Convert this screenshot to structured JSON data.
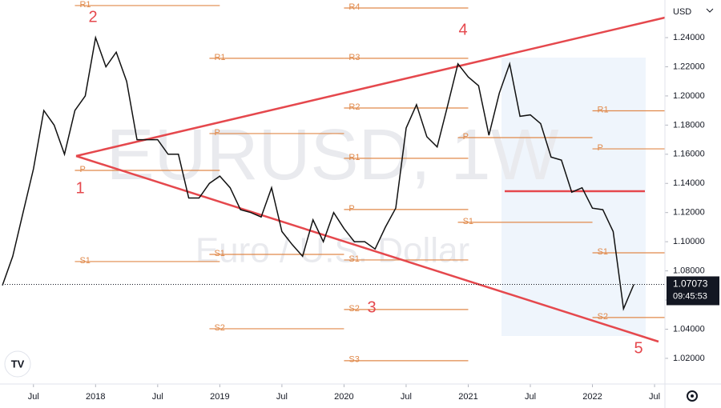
{
  "chart_data": {
    "type": "line",
    "watermark": "EURUSD, 1W",
    "watermark_subtitle": "Euro / U.S. Dollar",
    "currency": "USD",
    "color": "#111111",
    "x": [
      "2017-04",
      "2017-05",
      "2017-06",
      "2017-07",
      "2017-08",
      "2017-09",
      "2017-10",
      "2017-11",
      "2017-12",
      "2018-01",
      "2018-02",
      "2018-03",
      "2018-04",
      "2018-05",
      "2018-06",
      "2018-07",
      "2018-08",
      "2018-09",
      "2018-10",
      "2018-11",
      "2018-12",
      "2019-01",
      "2019-02",
      "2019-03",
      "2019-04",
      "2019-05",
      "2019-06",
      "2019-07",
      "2019-08",
      "2019-09",
      "2019-10",
      "2019-11",
      "2019-12",
      "2020-01",
      "2020-02",
      "2020-03",
      "2020-04",
      "2020-05",
      "2020-06",
      "2020-07",
      "2020-08",
      "2020-09",
      "2020-10",
      "2020-11",
      "2020-12",
      "2021-01",
      "2021-02",
      "2021-03",
      "2021-04",
      "2021-05",
      "2021-06",
      "2021-07",
      "2021-08",
      "2021-09",
      "2021-10",
      "2021-11",
      "2021-12",
      "2022-01",
      "2022-02",
      "2022-03",
      "2022-04",
      "2022-05"
    ],
    "values": [
      1.07,
      1.09,
      1.12,
      1.15,
      1.19,
      1.18,
      1.16,
      1.19,
      1.2,
      1.24,
      1.22,
      1.23,
      1.21,
      1.17,
      1.17,
      1.17,
      1.16,
      1.16,
      1.13,
      1.13,
      1.14,
      1.145,
      1.137,
      1.122,
      1.12,
      1.117,
      1.137,
      1.107,
      1.098,
      1.09,
      1.115,
      1.1,
      1.12,
      1.109,
      1.1,
      1.1,
      1.095,
      1.11,
      1.123,
      1.178,
      1.194,
      1.172,
      1.165,
      1.193,
      1.222,
      1.213,
      1.207,
      1.173,
      1.202,
      1.222,
      1.186,
      1.187,
      1.181,
      1.158,
      1.156,
      1.134,
      1.137,
      1.123,
      1.122,
      1.107,
      1.054,
      1.0707
    ],
    "xlim": [
      "2017-04",
      "2022-08"
    ],
    "xticks": [
      {
        "value": "2017-07",
        "label": "Jul"
      },
      {
        "value": "2018-01",
        "label": "2018"
      },
      {
        "value": "2018-07",
        "label": "Jul"
      },
      {
        "value": "2019-01",
        "label": "2019"
      },
      {
        "value": "2019-07",
        "label": "Jul"
      },
      {
        "value": "2020-01",
        "label": "2020"
      },
      {
        "value": "2020-07",
        "label": "Jul"
      },
      {
        "value": "2021-01",
        "label": "2021"
      },
      {
        "value": "2021-07",
        "label": "Jul"
      },
      {
        "value": "2022-01",
        "label": "2022"
      },
      {
        "value": "2022-07",
        "label": "Jul"
      }
    ],
    "ylim": [
      1.0024,
      1.2658
    ],
    "yticks": [
      {
        "value": 1.02,
        "label": "1.02000"
      },
      {
        "value": 1.04,
        "label": "1.04000"
      },
      {
        "value": 1.06,
        "label": "1.06000"
      },
      {
        "value": 1.08,
        "label": "1.08000"
      },
      {
        "value": 1.1,
        "label": "1.10000"
      },
      {
        "value": 1.12,
        "label": "1.12000"
      },
      {
        "value": 1.14,
        "label": "1.14000"
      },
      {
        "value": 1.16,
        "label": "1.16000"
      },
      {
        "value": 1.18,
        "label": "1.18000"
      },
      {
        "value": 1.2,
        "label": "1.20000"
      },
      {
        "value": 1.22,
        "label": "1.22000"
      },
      {
        "value": 1.24,
        "label": "1.24000"
      }
    ],
    "last_price": 1.07073,
    "countdown": "09:45:53",
    "level_color": "#e0894a",
    "levels": [
      {
        "label": "R1",
        "value": 1.262,
        "start": "2017-11",
        "end": "2019-01"
      },
      {
        "label": "P",
        "value": 1.1489,
        "start": "2017-11",
        "end": "2019-01"
      },
      {
        "label": "S1",
        "value": 1.0864,
        "start": "2017-11",
        "end": "2019-01"
      },
      {
        "label": "R1",
        "value": 1.2258,
        "start": "2018-12",
        "end": "2020-01"
      },
      {
        "label": "P",
        "value": 1.1742,
        "start": "2018-12",
        "end": "2020-01"
      },
      {
        "label": "S1",
        "value": 1.0913,
        "start": "2018-12",
        "end": "2020-01"
      },
      {
        "label": "S2",
        "value": 1.0403,
        "start": "2018-12",
        "end": "2020-01"
      },
      {
        "label": "R4",
        "value": 1.2603,
        "start": "2020-01",
        "end": "2021-01"
      },
      {
        "label": "R3",
        "value": 1.2258,
        "start": "2020-01",
        "end": "2021-01"
      },
      {
        "label": "R2",
        "value": 1.1917,
        "start": "2020-01",
        "end": "2021-01"
      },
      {
        "label": "R1",
        "value": 1.1572,
        "start": "2020-01",
        "end": "2021-01"
      },
      {
        "label": "P",
        "value": 1.1221,
        "start": "2020-01",
        "end": "2021-01"
      },
      {
        "label": "S1",
        "value": 1.0875,
        "start": "2020-01",
        "end": "2021-01"
      },
      {
        "label": "S2",
        "value": 1.0535,
        "start": "2020-01",
        "end": "2021-01"
      },
      {
        "label": "S3",
        "value": 1.0184,
        "start": "2020-01",
        "end": "2021-01"
      },
      {
        "label": "P",
        "value": 1.1714,
        "start": "2020-12",
        "end": "2022-01"
      },
      {
        "label": "S1",
        "value": 1.1133,
        "start": "2020-12",
        "end": "2022-01"
      },
      {
        "label": "R1",
        "value": 1.1898,
        "start": "2022-01",
        "end": "2022-08"
      },
      {
        "label": "P",
        "value": 1.1637,
        "start": "2022-01",
        "end": "2022-08"
      },
      {
        "label": "S1",
        "value": 1.0924,
        "start": "2022-01",
        "end": "2022-08"
      },
      {
        "label": "S2",
        "value": 1.048,
        "start": "2022-01",
        "end": "2022-08"
      }
    ],
    "wave_labels": [
      "1",
      "2",
      "3",
      "4",
      "5"
    ]
  }
}
